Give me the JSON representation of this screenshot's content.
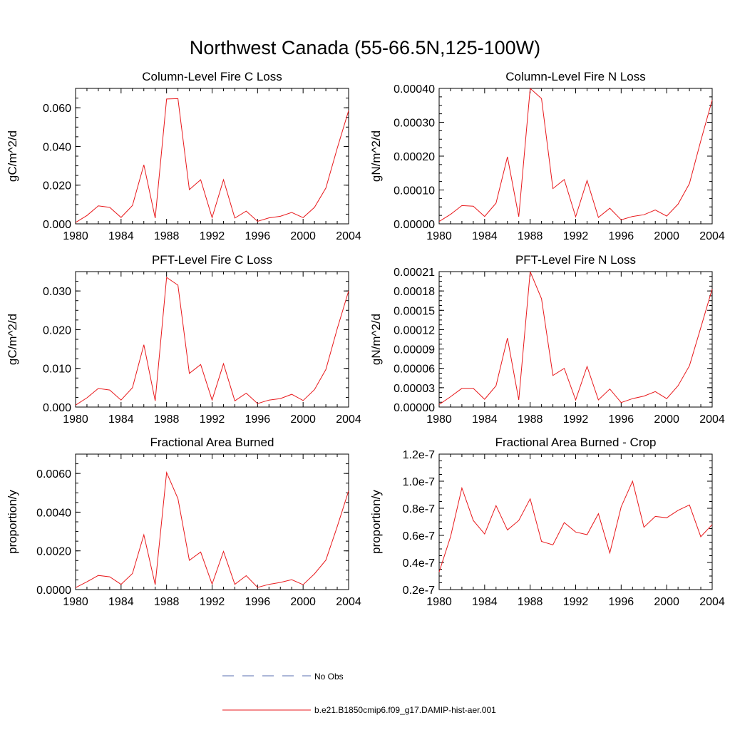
{
  "figure": {
    "title": "Northwest Canada (55-66.5N,125-100W)"
  },
  "legend": {
    "obs_label": "No Obs",
    "model_label": "b.e21.B1850cmip6.f09_g17.DAMIP-hist-aer.001",
    "obs_color": "#5a6fb0",
    "model_color": "#e8191c"
  },
  "chart_data": [
    {
      "type": "line",
      "title": "Column-Level Fire C Loss",
      "ylabel": "gC/m^2/d",
      "xlim": [
        1980,
        2004
      ],
      "ylim": [
        0,
        0.07
      ],
      "x_ticks": [
        "1980",
        "1984",
        "1988",
        "1992",
        "1996",
        "2000",
        "2004"
      ],
      "y_ticks": [
        {
          "value": 0.0,
          "label": "0.000"
        },
        {
          "value": 0.02,
          "label": "0.020"
        },
        {
          "value": 0.04,
          "label": "0.040"
        },
        {
          "value": 0.06,
          "label": "0.060"
        }
      ],
      "x": [
        1980,
        1981,
        1982,
        1983,
        1984,
        1985,
        1986,
        1987,
        1988,
        1989,
        1990,
        1991,
        1992,
        1993,
        1994,
        1995,
        1996,
        1997,
        1998,
        1999,
        2000,
        2001,
        2002,
        2003,
        2004
      ],
      "values": [
        0.0007,
        0.0043,
        0.0093,
        0.0085,
        0.0033,
        0.0095,
        0.0305,
        0.003,
        0.0645,
        0.0647,
        0.0177,
        0.0228,
        0.0032,
        0.0228,
        0.003,
        0.0066,
        0.0013,
        0.0031,
        0.0039,
        0.0059,
        0.0032,
        0.0085,
        0.0185,
        0.039,
        0.0585
      ],
      "color": "#e8191c"
    },
    {
      "type": "line",
      "title": "Column-Level Fire N Loss",
      "ylabel": "gN/m^2/d",
      "xlim": [
        1980,
        2004
      ],
      "ylim": [
        0,
        0.0004
      ],
      "x_ticks": [
        "1980",
        "1984",
        "1988",
        "1992",
        "1996",
        "2000",
        "2004"
      ],
      "y_ticks": [
        {
          "value": 0.0,
          "label": "0.00000"
        },
        {
          "value": 0.0001,
          "label": "0.00010"
        },
        {
          "value": 0.0002,
          "label": "0.00020"
        },
        {
          "value": 0.0003,
          "label": "0.00030"
        },
        {
          "value": 0.0004,
          "label": "0.00040"
        }
      ],
      "x": [
        1980,
        1981,
        1982,
        1983,
        1984,
        1985,
        1986,
        1987,
        1988,
        1989,
        1990,
        1991,
        1992,
        1993,
        1994,
        1995,
        1996,
        1997,
        1998,
        1999,
        2000,
        2001,
        2002,
        2003,
        2004
      ],
      "values": [
        7e-06,
        2.8e-05,
        5.4e-05,
        5.2e-05,
        2.2e-05,
        6.1e-05,
        0.000198,
        2.1e-05,
        0.0004,
        0.00037,
        0.000104,
        0.000131,
        2.1e-05,
        0.000128,
        1.9e-05,
        4.6e-05,
        1.2e-05,
        2.2e-05,
        2.7e-05,
        4.1e-05,
        2.3e-05,
        5.8e-05,
        0.000119,
        0.000245,
        0.000366
      ],
      "color": "#e8191c"
    },
    {
      "type": "line",
      "title": "PFT-Level Fire C Loss",
      "ylabel": "gC/m^2/d",
      "xlim": [
        1980,
        2004
      ],
      "ylim": [
        0,
        0.035
      ],
      "x_ticks": [
        "1980",
        "1984",
        "1988",
        "1992",
        "1996",
        "2000",
        "2004"
      ],
      "y_ticks": [
        {
          "value": 0.0,
          "label": "0.000"
        },
        {
          "value": 0.01,
          "label": "0.010"
        },
        {
          "value": 0.02,
          "label": "0.020"
        },
        {
          "value": 0.03,
          "label": "0.030"
        }
      ],
      "x": [
        1980,
        1981,
        1982,
        1983,
        1984,
        1985,
        1986,
        1987,
        1988,
        1989,
        1990,
        1991,
        1992,
        1993,
        1994,
        1995,
        1996,
        1997,
        1998,
        1999,
        2000,
        2001,
        2002,
        2003,
        2004
      ],
      "values": [
        0.0005,
        0.0024,
        0.0048,
        0.0044,
        0.0018,
        0.005,
        0.0161,
        0.0016,
        0.0335,
        0.0315,
        0.0087,
        0.011,
        0.0018,
        0.0112,
        0.0016,
        0.0036,
        0.0009,
        0.0018,
        0.0022,
        0.0033,
        0.0017,
        0.0045,
        0.0097,
        0.0202,
        0.03
      ],
      "color": "#e8191c"
    },
    {
      "type": "line",
      "title": "PFT-Level Fire N Loss",
      "ylabel": "gN/m^2/d",
      "xlim": [
        1980,
        2004
      ],
      "ylim": [
        0,
        0.00021
      ],
      "x_ticks": [
        "1980",
        "1984",
        "1988",
        "1992",
        "1996",
        "2000",
        "2004"
      ],
      "y_ticks": [
        {
          "value": 0.0,
          "label": "0.00000"
        },
        {
          "value": 3e-05,
          "label": "0.00003"
        },
        {
          "value": 6e-05,
          "label": "0.00006"
        },
        {
          "value": 9e-05,
          "label": "0.00009"
        },
        {
          "value": 0.00012,
          "label": "0.00012"
        },
        {
          "value": 0.00015,
          "label": "0.00015"
        },
        {
          "value": 0.00018,
          "label": "0.00018"
        },
        {
          "value": 0.00021,
          "label": "0.00021"
        }
      ],
      "x": [
        1980,
        1981,
        1982,
        1983,
        1984,
        1985,
        1986,
        1987,
        1988,
        1989,
        1990,
        1991,
        1992,
        1993,
        1994,
        1995,
        1996,
        1997,
        1998,
        1999,
        2000,
        2001,
        2002,
        2003,
        2004
      ],
      "values": [
        4e-06,
        1.6e-05,
        2.9e-05,
        2.9e-05,
        1.2e-05,
        3.3e-05,
        0.000107,
        1.1e-05,
        0.00021,
        0.000168,
        4.9e-05,
        6e-05,
        1.1e-05,
        6.3e-05,
        1.1e-05,
        2.8e-05,
        7e-06,
        1.3e-05,
        1.7e-05,
        2.4e-05,
        1.3e-05,
        3.3e-05,
        6.4e-05,
        0.000123,
        0.000183
      ],
      "color": "#e8191c"
    },
    {
      "type": "line",
      "title": "Fractional Area Burned",
      "ylabel": "proportion/y",
      "xlim": [
        1980,
        2004
      ],
      "ylim": [
        0,
        0.007
      ],
      "x_ticks": [
        "1980",
        "1984",
        "1988",
        "1992",
        "1996",
        "2000",
        "2004"
      ],
      "y_ticks": [
        {
          "value": 0.0,
          "label": "0.0000"
        },
        {
          "value": 0.002,
          "label": "0.0020"
        },
        {
          "value": 0.004,
          "label": "0.0040"
        },
        {
          "value": 0.006,
          "label": "0.0060"
        }
      ],
      "x": [
        1980,
        1981,
        1982,
        1983,
        1984,
        1985,
        1986,
        1987,
        1988,
        1989,
        1990,
        1991,
        1992,
        1993,
        1994,
        1995,
        1996,
        1997,
        1998,
        1999,
        2000,
        2001,
        2002,
        2003,
        2004
      ],
      "values": [
        0.0001,
        0.0004,
        0.00073,
        0.00066,
        0.00027,
        0.00083,
        0.00283,
        0.00025,
        0.00605,
        0.0047,
        0.00151,
        0.00194,
        0.00028,
        0.00197,
        0.00027,
        0.00072,
        0.00011,
        0.00027,
        0.00037,
        0.00051,
        0.00025,
        0.00081,
        0.00152,
        0.00325,
        0.0051
      ],
      "color": "#e8191c"
    },
    {
      "type": "line",
      "title": "Fractional Area Burned - Crop",
      "ylabel": "proportion/y",
      "xlim": [
        1980,
        2004
      ],
      "ylim": [
        2e-08,
        1.2e-07
      ],
      "x_ticks": [
        "1980",
        "1984",
        "1988",
        "1992",
        "1996",
        "2000",
        "2004"
      ],
      "y_ticks": [
        {
          "value": 2e-08,
          "label": "0.2e-7"
        },
        {
          "value": 4e-08,
          "label": "0.4e-7"
        },
        {
          "value": 6e-08,
          "label": "0.6e-7"
        },
        {
          "value": 8e-08,
          "label": "0.8e-7"
        },
        {
          "value": 1e-07,
          "label": "1.0e-7"
        },
        {
          "value": 1.2e-07,
          "label": "1.2e-7"
        }
      ],
      "x": [
        1980,
        1981,
        1982,
        1983,
        1984,
        1985,
        1986,
        1987,
        1988,
        1989,
        1990,
        1991,
        1992,
        1993,
        1994,
        1995,
        1996,
        1997,
        1998,
        1999,
        2000,
        2001,
        2002,
        2003,
        2004
      ],
      "values": [
        3.3e-08,
        5.9e-08,
        9.5e-08,
        7.1e-08,
        6.1e-08,
        8.2e-08,
        6.4e-08,
        7.1e-08,
        8.7e-08,
        5.55e-08,
        5.3e-08,
        6.95e-08,
        6.25e-08,
        6.05e-08,
        7.6e-08,
        4.7e-08,
        8.1e-08,
        1e-07,
        6.6e-08,
        7.4e-08,
        7.3e-08,
        7.85e-08,
        8.25e-08,
        5.9e-08,
        6.8e-08
      ],
      "color": "#e8191c"
    }
  ]
}
